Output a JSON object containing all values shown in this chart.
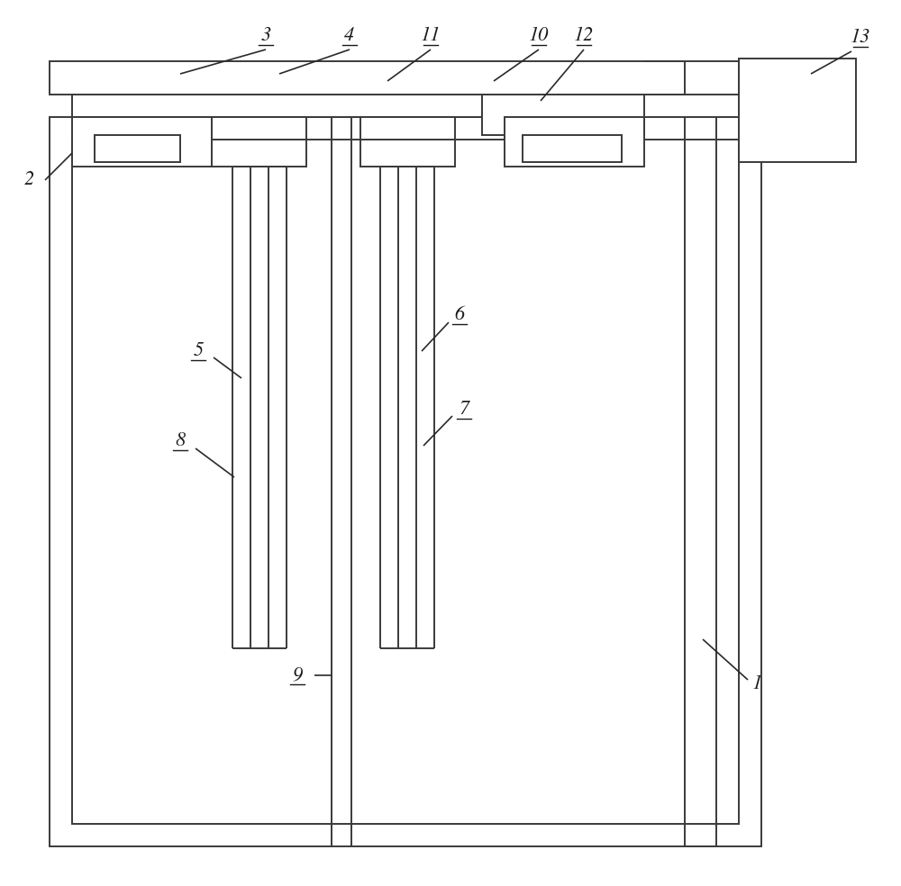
{
  "bg_color": "#ffffff",
  "lc": "#3a3a3a",
  "lw": 1.4,
  "fig_w": 10.0,
  "fig_h": 9.84
}
